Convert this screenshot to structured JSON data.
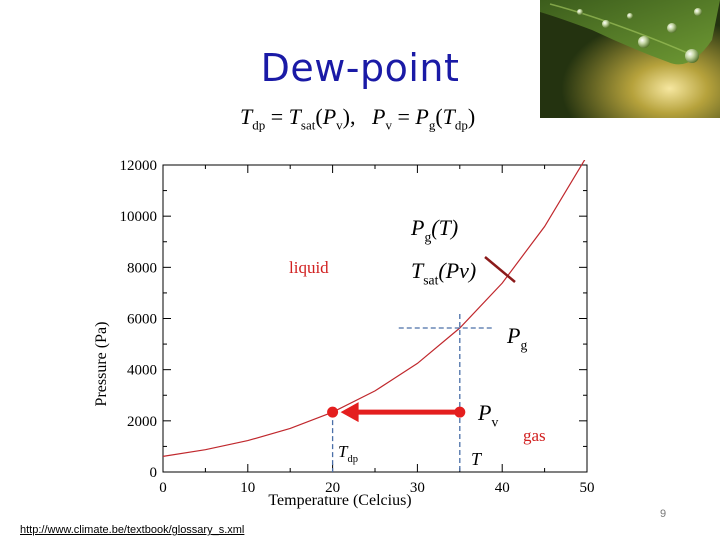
{
  "slide": {
    "title": "Dew-point",
    "page_number": "9",
    "source_link": "http://www.climate.be/textbook/glossary_s.xml"
  },
  "equation": {
    "t_dp": "T",
    "dp_sub": "dp",
    "equals": "=",
    "t_sat": "T",
    "sat_sub": "sat",
    "p": "P",
    "v_sub": "v",
    "g_sub": "g"
  },
  "chart_data": {
    "type": "line",
    "title": "",
    "xlabel": "Temperature (Celcius)",
    "ylabel": "Pressure (Pa)",
    "xlim": [
      0,
      50
    ],
    "ylim": [
      0,
      12000
    ],
    "x_ticks": [
      0,
      10,
      20,
      30,
      40,
      50
    ],
    "y_ticks": [
      0,
      2000,
      4000,
      6000,
      8000,
      10000,
      12000
    ],
    "x_tick_labels": [
      "0",
      "10",
      "20",
      "30",
      "40",
      "50"
    ],
    "y_tick_labels": [
      "0",
      "2000",
      "4000",
      "6000",
      "8000",
      "10000",
      "12000"
    ],
    "grid": false,
    "series": [
      {
        "color": "#c0282d",
        "x": [
          0,
          5,
          10,
          15,
          20,
          25,
          30,
          35,
          40,
          45,
          50
        ],
        "y": [
          611,
          872,
          1228,
          1705,
          2339,
          3169,
          4246,
          5628,
          7384,
          9595,
          12352
        ]
      }
    ],
    "annotations": {
      "liquid_label": "liquid",
      "gas_label": "gas",
      "pg_label": "Pg(T)",
      "tsat_label": "Tsat(Pv)",
      "pg_axis_label": "Pg",
      "pv_label": "Pv",
      "tdp_label": "Tdp",
      "t_label": "T",
      "state_point": {
        "x": 35,
        "y": 2339
      },
      "dew_point": {
        "x": 20,
        "y": 2339
      },
      "saturation_point": {
        "x": 35,
        "y": 5628
      },
      "arrow_color": "#e41e1e",
      "dash_color": "#4a6fa8"
    }
  }
}
